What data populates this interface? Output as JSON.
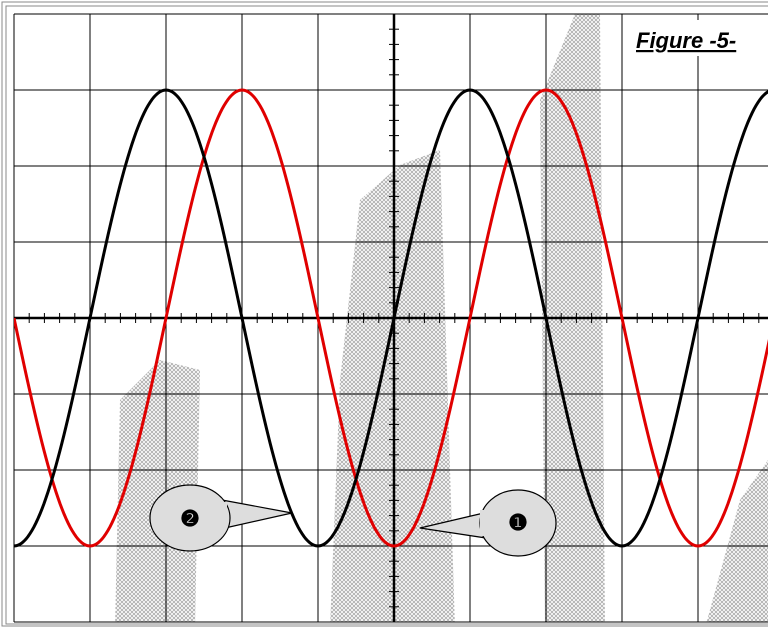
{
  "header": {
    "title": "Figure -5-"
  },
  "callouts": [
    {
      "label": "❷"
    },
    {
      "label": "❶"
    }
  ]
}
